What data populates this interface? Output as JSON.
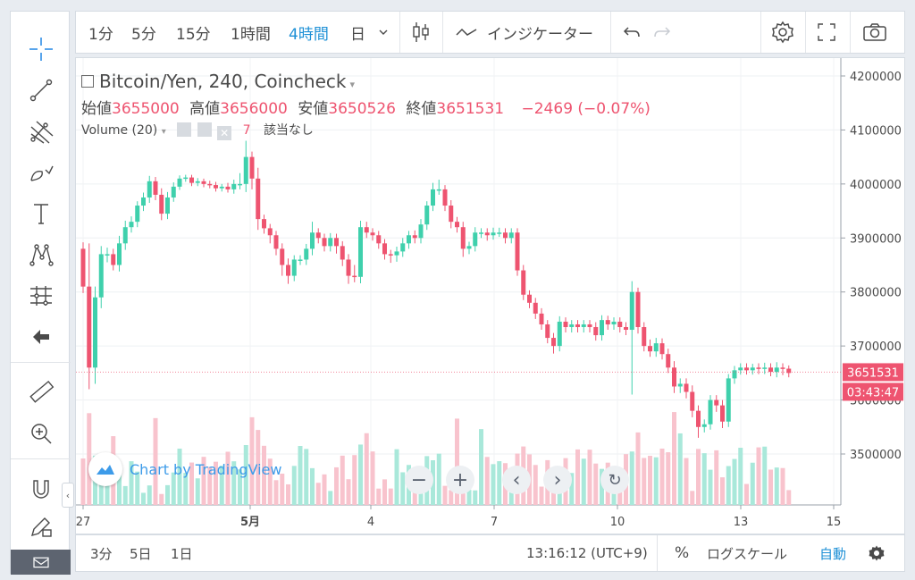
{
  "toolbar": {
    "intervals": [
      "1分",
      "5分",
      "15分",
      "1時間",
      "4時間",
      "日"
    ],
    "active_interval": "4時間",
    "indicators_label": "インジケーター"
  },
  "legend": {
    "symbol": "Bitcoin/Yen, 240, Coincheck",
    "open_label": "始値",
    "open": "3655000",
    "high_label": "高値",
    "high": "3656000",
    "low_label": "安値",
    "low": "3650526",
    "close_label": "終値",
    "close": "3651531",
    "change": "−2469 (−0.07%)",
    "volume_label": "Volume (20)",
    "volume_value": "7",
    "volume_na": "該当なし"
  },
  "watermark": "Chart by TradingView",
  "price_label": "3651531",
  "countdown_label": "03:43:47",
  "bottom": {
    "ranges": [
      "3分",
      "5日",
      "1日"
    ],
    "time": "13:16:12 (UTC+9)",
    "percent": "%",
    "log_scale": "ログスケール",
    "auto": "自動"
  },
  "colors": {
    "up": "#3fd0ac",
    "down": "#ee5470",
    "up_vol": "#a9e8da",
    "down_vol": "#f8c3cd",
    "accent": "#1e90d6"
  },
  "chart_data": {
    "type": "candlestick",
    "y_ticks": [
      "4200000",
      "4100000",
      "4000000",
      "3900000",
      "3800000",
      "3700000",
      "3600000",
      "3500000"
    ],
    "ylim": [
      3420000,
      4215000
    ],
    "x_ticks": [
      "27",
      "5月",
      "4",
      "7",
      "10",
      "13",
      "15"
    ],
    "current_price": 3651531,
    "series": {
      "name": "Bitcoin/Yen",
      "close": [
        3810000,
        3660000,
        3790000,
        3870000,
        3870000,
        3850000,
        3890000,
        3920000,
        3930000,
        3960000,
        3975000,
        4005000,
        3980000,
        3945000,
        3975000,
        3995000,
        4010000,
        4012000,
        4002000,
        4005000,
        4000000,
        3998000,
        3992000,
        3995000,
        3990000,
        4000000,
        4000000,
        4050000,
        4010000,
        3935000,
        3918000,
        3905000,
        3880000,
        3850000,
        3830000,
        3860000,
        3860000,
        3880000,
        3910000,
        3900000,
        3885000,
        3900000,
        3885000,
        3860000,
        3830000,
        3828000,
        3920000,
        3910000,
        3905000,
        3890000,
        3870000,
        3868000,
        3875000,
        3890000,
        3905000,
        3900000,
        3925000,
        3960000,
        3990000,
        3990000,
        3960000,
        3930000,
        3920000,
        3880000,
        3885000,
        3910000,
        3910000,
        3905000,
        3910000,
        3910000,
        3900000,
        3910000,
        3840000,
        3795000,
        3780000,
        3760000,
        3740000,
        3715000,
        3700000,
        3745000,
        3735000,
        3740000,
        3735000,
        3740000,
        3735000,
        3720000,
        3748000,
        3740000,
        3745000,
        3735000,
        3730000,
        3800000,
        3735000,
        3700000,
        3690000,
        3705000,
        3685000,
        3660000,
        3625000,
        3630000,
        3615000,
        3580000,
        3550000,
        3555000,
        3600000,
        3590000,
        3560000,
        3640000,
        3655000,
        3660000,
        3655000,
        3660000,
        3658000,
        3660000,
        3652000,
        3660000,
        3658000,
        3650000
      ]
    },
    "volume": {
      "name": "Volume (20)"
    }
  }
}
